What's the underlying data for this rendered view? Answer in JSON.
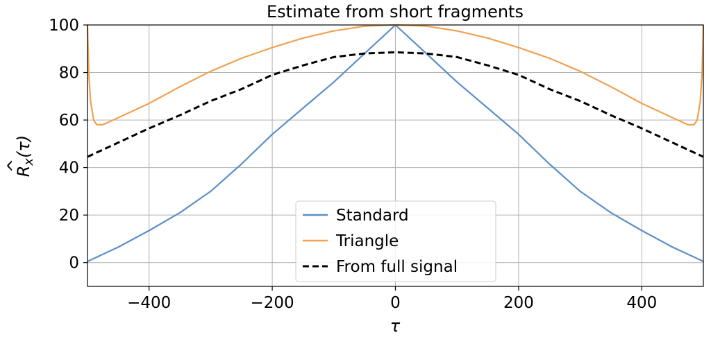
{
  "chart_data": {
    "type": "line",
    "title": "Estimate from short fragments",
    "xlabel": "τ",
    "ylabel_base": "R",
    "ylabel_hat": "^",
    "ylabel_sub": "x",
    "ylabel_arg": "(τ)",
    "xlim": [
      -500,
      500
    ],
    "ylim": [
      -10,
      100
    ],
    "xticks": [
      -400,
      -200,
      0,
      200,
      400
    ],
    "xtick_labels": [
      "−400",
      "−200",
      "0",
      "200",
      "400"
    ],
    "yticks": [
      0,
      20,
      40,
      60,
      80,
      100
    ],
    "ytick_labels": [
      "0",
      "20",
      "40",
      "60",
      "80",
      "100"
    ],
    "grid": true,
    "legend_position": "bottom-center",
    "series": [
      {
        "name": "Standard",
        "color": "#5b8fc7",
        "dash": "solid",
        "x": [
          -500,
          -450,
          -400,
          -350,
          -300,
          -250,
          -200,
          -150,
          -100,
          -50,
          0,
          50,
          100,
          150,
          200,
          250,
          300,
          350,
          400,
          450,
          500
        ],
        "y": [
          0.5,
          6.5,
          13.5,
          21,
          30,
          41.5,
          54,
          65,
          76,
          88,
          100,
          88,
          76,
          65,
          54,
          41.5,
          30,
          21,
          13.5,
          6.5,
          0.5
        ]
      },
      {
        "name": "Triangle",
        "color": "#f0a150",
        "dash": "solid",
        "x": [
          -500,
          -498,
          -495,
          -490,
          -485,
          -475,
          -450,
          -400,
          -350,
          -300,
          -250,
          -200,
          -150,
          -100,
          -50,
          0,
          50,
          100,
          150,
          200,
          250,
          300,
          350,
          400,
          450,
          475,
          485,
          490,
          495,
          498,
          500
        ],
        "y": [
          100,
          80,
          68,
          60,
          58,
          58,
          61,
          67,
          74,
          80.5,
          86,
          90.5,
          94.5,
          97.5,
          99.5,
          100,
          99.5,
          97.5,
          94.5,
          90.5,
          86,
          80.5,
          74,
          67,
          61,
          58,
          58,
          60,
          68,
          80,
          100
        ]
      },
      {
        "name": "From full signal",
        "color": "#000000",
        "dash": "dashed",
        "x": [
          -500,
          -450,
          -400,
          -350,
          -300,
          -250,
          -200,
          -150,
          -100,
          -50,
          0,
          50,
          100,
          150,
          200,
          250,
          300,
          350,
          400,
          450,
          500
        ],
        "y": [
          44.5,
          50.5,
          56.5,
          62,
          68,
          73,
          79,
          83,
          86.5,
          88,
          88.5,
          88,
          86.5,
          83,
          79,
          73,
          68,
          62,
          56.5,
          50.5,
          44.5
        ]
      }
    ]
  }
}
